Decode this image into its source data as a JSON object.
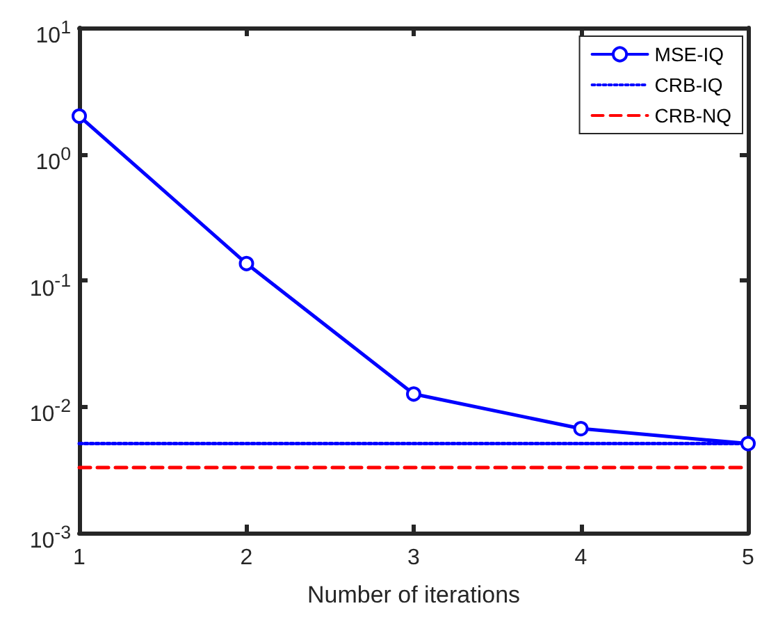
{
  "chart_data": {
    "type": "line",
    "xlabel": "Number of iterations",
    "x": [
      1,
      2,
      3,
      4,
      5
    ],
    "series": [
      {
        "name": "MSE-IQ",
        "color": "#0000ff",
        "values": [
          2.0,
          0.136,
          0.0126,
          0.0067,
          0.0051
        ],
        "marker": "circle",
        "line_style": "solid"
      },
      {
        "name": "CRB-IQ",
        "color": "#0000ff",
        "values": [
          0.0051,
          0.0051,
          0.0051,
          0.0051,
          0.0051
        ],
        "marker": "none",
        "line_style": "dotted"
      },
      {
        "name": "CRB-NQ",
        "color": "#ff0000",
        "values": [
          0.0033,
          0.0033,
          0.0033,
          0.0033,
          0.0033
        ],
        "marker": "none",
        "line_style": "dashed"
      }
    ],
    "log": "y",
    "xlim": [
      1,
      5
    ],
    "xticks": [
      1,
      2,
      3,
      4,
      5
    ],
    "ylim": [
      0.001,
      10
    ],
    "yticks": [
      {
        "value": 0.001,
        "label": "10$^{-3}$"
      },
      {
        "value": 0.01,
        "label": "10$^{-2}$"
      },
      {
        "value": 0.1,
        "label": "10$^{-1}$"
      },
      {
        "value": 1,
        "label": "10$^{0}$"
      },
      {
        "value": 10,
        "label": "10$^{1}$"
      }
    ],
    "grid": false,
    "legend": "top right"
  }
}
